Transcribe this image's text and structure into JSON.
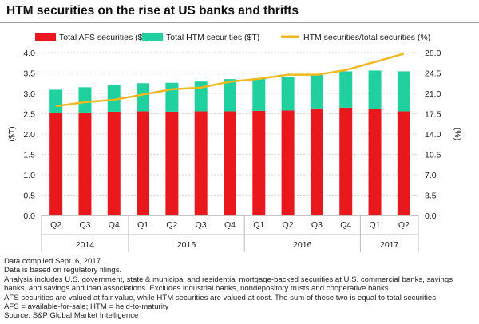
{
  "title": "HTM securities on the rise at US banks and thrifts",
  "chart_data": {
    "type": "bar",
    "stacked": true,
    "categories": [
      "Q2",
      "Q3",
      "Q4",
      "Q1",
      "Q2",
      "Q3",
      "Q4",
      "Q1",
      "Q2",
      "Q3",
      "Q4",
      "Q1",
      "Q2"
    ],
    "years": [
      {
        "label": "2014",
        "start": 0,
        "end": 2
      },
      {
        "label": "2015",
        "start": 3,
        "end": 6
      },
      {
        "label": "2016",
        "start": 7,
        "end": 10
      },
      {
        "label": "2017",
        "start": 11,
        "end": 12
      }
    ],
    "series": [
      {
        "name": "Total AFS securities ($T)",
        "kind": "bar",
        "axis": "left",
        "color": "#e8181c",
        "values": [
          2.51,
          2.53,
          2.55,
          2.56,
          2.55,
          2.56,
          2.56,
          2.57,
          2.58,
          2.63,
          2.65,
          2.61,
          2.56
        ]
      },
      {
        "name": "Total HTM securities ($T)",
        "kind": "bar",
        "axis": "left",
        "color": "#20d19f",
        "values": [
          0.58,
          0.62,
          0.65,
          0.69,
          0.71,
          0.73,
          0.79,
          0.8,
          0.83,
          0.82,
          0.89,
          0.95,
          0.98
        ]
      },
      {
        "name": "HTM securities/total securities (%)",
        "kind": "line",
        "axis": "right",
        "color": "#f0b81e",
        "values": [
          18.8,
          19.5,
          19.9,
          20.8,
          21.7,
          22.0,
          23.0,
          23.5,
          24.2,
          24.2,
          25.0,
          26.4,
          27.8
        ]
      }
    ],
    "ylabel": "($T)",
    "y2label": "(%)",
    "ylim": [
      0,
      4.0
    ],
    "yticks": [
      "0.0",
      "0.5",
      "1.0",
      "1.5",
      "2.0",
      "2.5",
      "3.0",
      "3.5",
      "4.0"
    ],
    "y2lim": [
      0,
      28.0
    ],
    "y2ticks": [
      "0.0",
      "3.5",
      "7.0",
      "10.5",
      "14.0",
      "17.5",
      "21.0",
      "24.5",
      "28.0"
    ],
    "grid": true,
    "legend": "top"
  },
  "notes": [
    "Data compiled Sept. 6, 2017.",
    "Data is based on regulatory filings.",
    "Analysis includes U.S. government, state & municipal and residential mortgage-backed securities at U.S. commercial banks, savings",
    "banks, and savings and loan associations. Excludes industrial banks, nondepository trusts and cooperative banks.",
    "AFS securities are valued at fair value, while HTM securities are valued at cost. The sum of these two is equal to total securities.",
    "AFS = available-for-sale; HTM = held-to-maturity",
    "Source: S&P Global Market Intelligence"
  ]
}
